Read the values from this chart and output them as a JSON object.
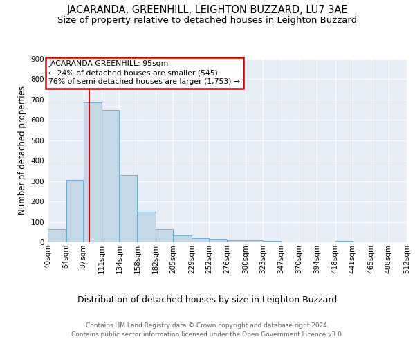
{
  "title": "JACARANDA, GREENHILL, LEIGHTON BUZZARD, LU7 3AE",
  "subtitle": "Size of property relative to detached houses in Leighton Buzzard",
  "xlabel": "Distribution of detached houses by size in Leighton Buzzard",
  "ylabel": "Number of detached properties",
  "footer1": "Contains HM Land Registry data © Crown copyright and database right 2024.",
  "footer2": "Contains public sector information licensed under the Open Government Licence v3.0.",
  "bin_labels": [
    "40sqm",
    "64sqm",
    "87sqm",
    "111sqm",
    "134sqm",
    "158sqm",
    "182sqm",
    "205sqm",
    "229sqm",
    "252sqm",
    "276sqm",
    "300sqm",
    "323sqm",
    "347sqm",
    "370sqm",
    "394sqm",
    "418sqm",
    "441sqm",
    "465sqm",
    "488sqm",
    "512sqm"
  ],
  "bin_edges": [
    40,
    64,
    87,
    111,
    134,
    158,
    182,
    205,
    229,
    252,
    276,
    300,
    323,
    347,
    370,
    394,
    418,
    441,
    465,
    488,
    512
  ],
  "bar_heights": [
    63,
    307,
    687,
    648,
    330,
    150,
    63,
    33,
    20,
    12,
    10,
    10,
    6,
    0,
    0,
    0,
    8,
    0,
    0,
    0
  ],
  "bar_color": "#c5d8e8",
  "bar_edge_color": "#6aaed6",
  "vline_x": 95,
  "vline_color": "#cc0000",
  "annotation_text": "JACARANDA GREENHILL: 95sqm\n← 24% of detached houses are smaller (545)\n76% of semi-detached houses are larger (1,753) →",
  "annotation_box_color": "#cc0000",
  "ylim": [
    0,
    900
  ],
  "yticks": [
    0,
    100,
    200,
    300,
    400,
    500,
    600,
    700,
    800,
    900
  ],
  "bg_color": "#e8eef8",
  "title_fontsize": 10.5,
  "subtitle_fontsize": 9.5,
  "ylabel_fontsize": 8.5,
  "xlabel_fontsize": 9,
  "tick_fontsize": 7.5,
  "annot_fontsize": 7.8,
  "footer_fontsize": 6.5,
  "footer_color": "#666666"
}
